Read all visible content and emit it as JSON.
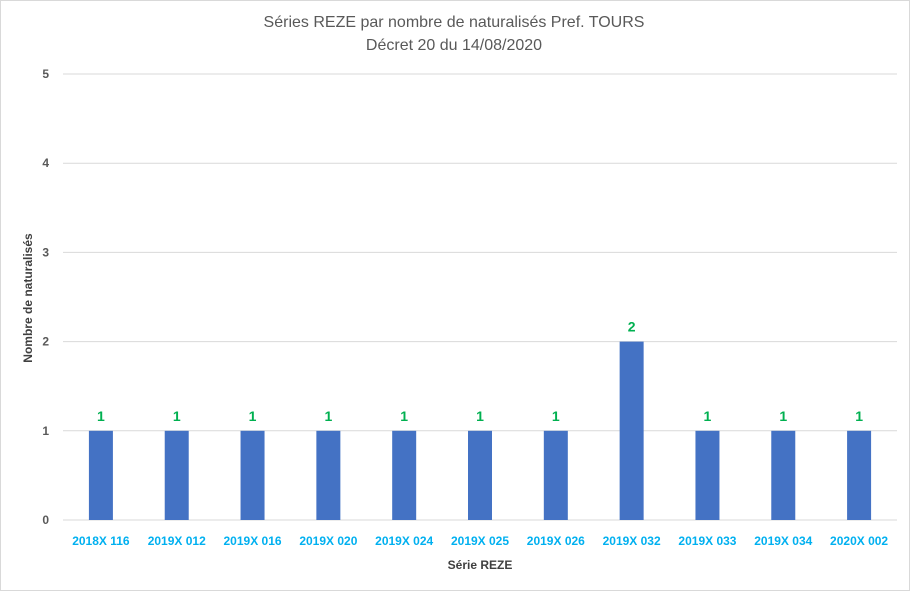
{
  "chart_data": {
    "type": "bar",
    "title_line1": "Séries REZE par nombre de naturalisés Pref. TOURS",
    "title_line2": "Décret 20 du 14/08/2020",
    "xlabel": "Série REZE",
    "ylabel": "Nombre de naturalisés",
    "categories": [
      "2018X 116",
      "2019X 012",
      "2019X 016",
      "2019X 020",
      "2019X 024",
      "2019X 025",
      "2019X 026",
      "2019X 032",
      "2019X 033",
      "2019X 034",
      "2020X 002"
    ],
    "values": [
      1,
      1,
      1,
      1,
      1,
      1,
      1,
      2,
      1,
      1,
      1
    ],
    "ylim": [
      0,
      5
    ],
    "yticks": [
      "0",
      "1",
      "2",
      "3",
      "4",
      "5"
    ],
    "grid": true,
    "legend": "none",
    "colors": {
      "bar": "#4472c4",
      "data_label": "#00b050",
      "category_label": "#00b0f0",
      "gridline": "#d9d9d9"
    }
  }
}
